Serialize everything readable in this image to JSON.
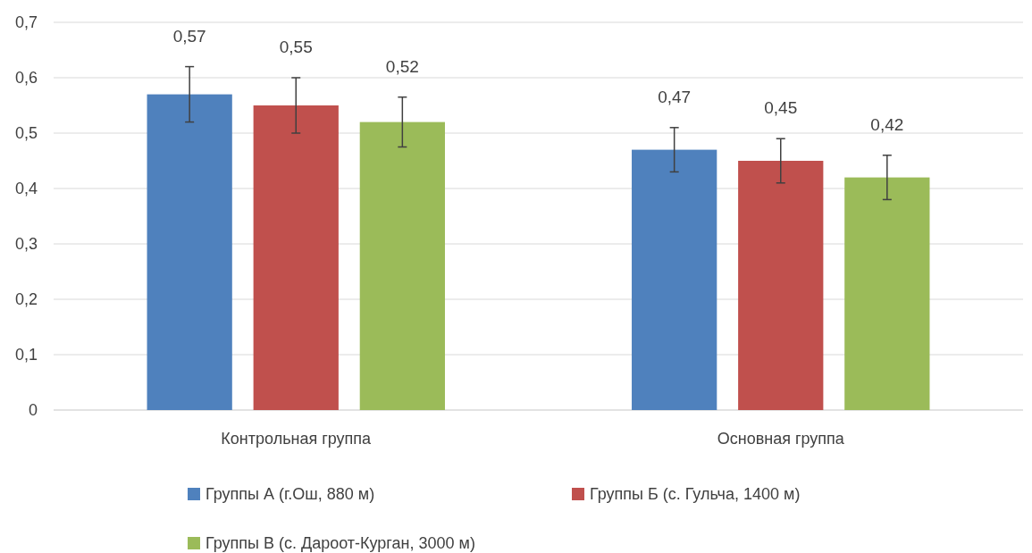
{
  "chart_data": {
    "type": "bar",
    "categories": [
      "Контрольная группа",
      "Основная группа"
    ],
    "series": [
      {
        "name": "Группы А (г.Ош, 880 м)",
        "color": "#4f81bd",
        "values": [
          0.57,
          0.47
        ],
        "errors": [
          0.05,
          0.04
        ],
        "value_labels": [
          "0,57",
          "0,47"
        ]
      },
      {
        "name": "Группы Б (с. Гульча, 1400 м)",
        "color": "#c0504d",
        "values": [
          0.55,
          0.45
        ],
        "errors": [
          0.05,
          0.04
        ],
        "value_labels": [
          "0,55",
          "0,45"
        ]
      },
      {
        "name": "Группы В (с. Дароот-Курган, 3000 м)",
        "color": "#9bbb59",
        "values": [
          0.52,
          0.42
        ],
        "errors": [
          0.045,
          0.04
        ],
        "value_labels": [
          "0,52",
          "0,42"
        ]
      }
    ],
    "ylim": [
      0,
      0.7
    ],
    "yticks": [
      {
        "value": 0,
        "label": "0"
      },
      {
        "value": 0.1,
        "label": "0,1"
      },
      {
        "value": 0.2,
        "label": "0,2"
      },
      {
        "value": 0.3,
        "label": "0,3"
      },
      {
        "value": 0.4,
        "label": "0,4"
      },
      {
        "value": 0.5,
        "label": "0,5"
      },
      {
        "value": 0.6,
        "label": "0,6"
      },
      {
        "value": 0.7,
        "label": "0,7"
      }
    ],
    "grid": "y",
    "legend": "bottom"
  }
}
